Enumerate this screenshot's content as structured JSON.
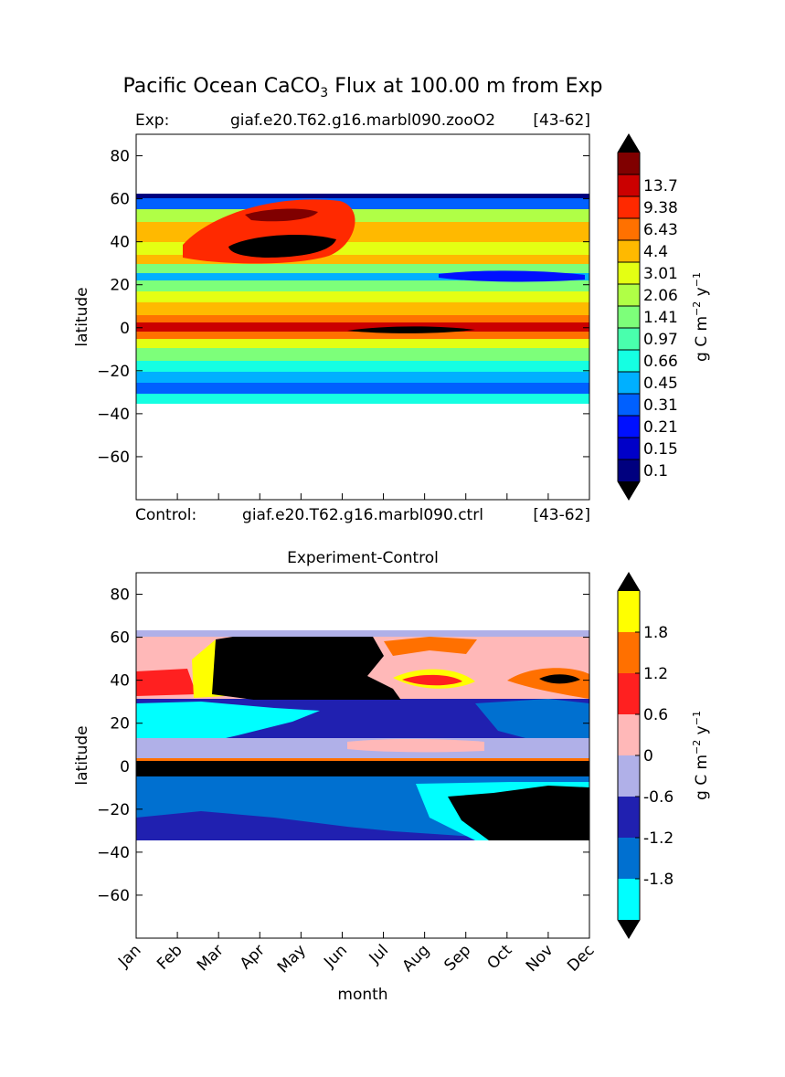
{
  "figure": {
    "title_pre": "Pacific Ocean CaCO",
    "title_sub": "3",
    "title_post": " Flux at 100.00 m from Exp"
  },
  "chart_data": [
    {
      "type": "heatmap",
      "panel": "experiment",
      "label_left": "Exp:",
      "label_center": "giaf.e20.T62.g16.marbl090.zooO2",
      "label_right": "[43-62]",
      "ylabel": "latitude",
      "xlim": [
        0,
        11
      ],
      "ylim": [
        -80,
        90
      ],
      "yticks": [
        80,
        60,
        40,
        20,
        0,
        -20,
        -40,
        -60
      ],
      "ytick_labels": [
        "80",
        "60",
        "40",
        "20",
        "0",
        "−20",
        "−40",
        "−60"
      ],
      "data_lat_range": [
        -34,
        63
      ],
      "colorbar": {
        "label_pre": "g C m",
        "label_sup1": "−2",
        "label_mid": " y",
        "label_sup2": "−1",
        "levels": [
          "0.1",
          "0.15",
          "0.21",
          "0.31",
          "0.45",
          "0.66",
          "0.97",
          "1.41",
          "2.06",
          "3.01",
          "4.4",
          "6.43",
          "9.38",
          "13.7"
        ],
        "colors": [
          "#00007f",
          "#0000c8",
          "#0010ff",
          "#0060ff",
          "#00b0ff",
          "#15ffe2",
          "#49ffad",
          "#7dff7a",
          "#b0ff46",
          "#e4ff13",
          "#ffb900",
          "#ff7100",
          "#ff2900",
          "#cb0000",
          "#800000"
        ],
        "under_color": "#000000",
        "over_color": "#000000"
      }
    },
    {
      "type": "heatmap",
      "panel": "difference",
      "title": "Experiment-Control",
      "label_left": "Control:",
      "label_center": "giaf.e20.T62.g16.marbl090.ctrl",
      "label_right": "[43-62]",
      "xlabel": "month",
      "ylabel": "latitude",
      "categories": [
        "Jan",
        "Feb",
        "Mar",
        "Apr",
        "May",
        "Jun",
        "Jul",
        "Aug",
        "Sep",
        "Oct",
        "Nov",
        "Dec"
      ],
      "xlim": [
        0,
        11
      ],
      "ylim": [
        -80,
        90
      ],
      "yticks": [
        80,
        60,
        40,
        20,
        0,
        -20,
        -40,
        -60
      ],
      "ytick_labels": [
        "80",
        "60",
        "40",
        "20",
        "0",
        "−20",
        "−40",
        "−60"
      ],
      "data_lat_range": [
        -34,
        63
      ],
      "colorbar": {
        "label_pre": "g C m",
        "label_sup1": "−2",
        "label_mid": " y",
        "label_sup2": "−1",
        "tick_labels": [
          "1.8",
          "1.2",
          "0.6",
          "0",
          "-0.6",
          "-1.2",
          "-1.8"
        ],
        "colors": [
          "#00ffff",
          "#0070d0",
          "#2020b0",
          "#b0b0e8",
          "#ffb8b8",
          "#ff2020",
          "#ff7000",
          "#ffff00"
        ],
        "under_color": "#000000",
        "over_color": "#000000"
      }
    }
  ]
}
